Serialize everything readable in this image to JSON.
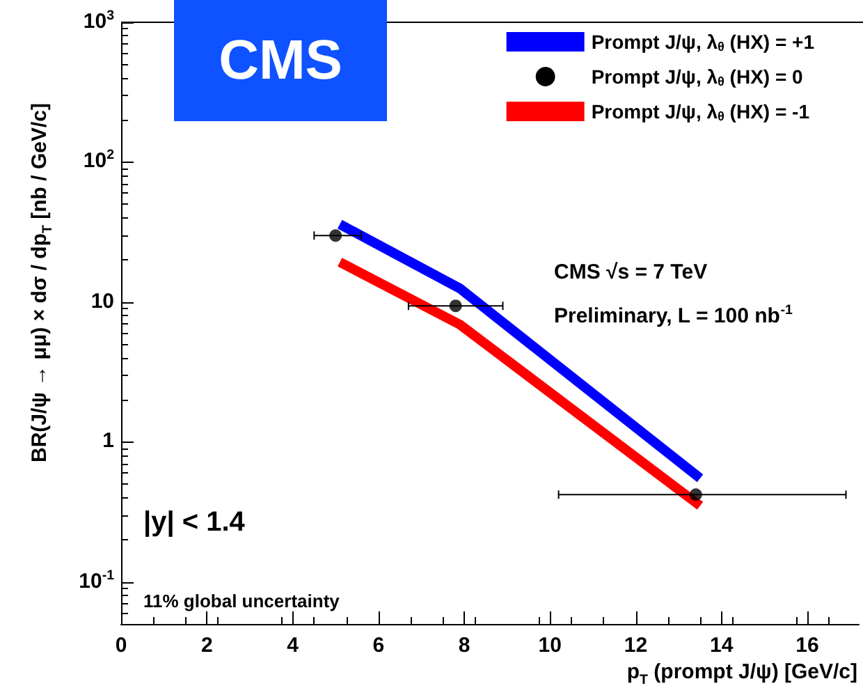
{
  "chart_data": {
    "type": "line",
    "xlabel": "p$_{T}$ (prompt J/ψ) [GeV/c]",
    "ylabel": "BR(J/ψ → μμ) × dσ / dp$_{T}$  [nb / GeV/c]",
    "log": "y",
    "grid": false,
    "legend": "top right",
    "xlim": [
      0,
      17.2
    ],
    "xticks": [
      0,
      2,
      4,
      6,
      8,
      10,
      12,
      14,
      16
    ],
    "ylim": [
      0.05,
      1000
    ],
    "yticks": [
      {
        "value": 0.1,
        "label": "10$^{-1}$"
      },
      1,
      10,
      {
        "value": 100,
        "label": "10$^{2}$"
      },
      {
        "value": 1000,
        "label": "10$^{3}$"
      }
    ],
    "series": [
      {
        "name": "Prompt J/ψ, λ$_{θ}$ (HX) = +1",
        "color": "#0000ff",
        "type": "line",
        "marker": "none",
        "x": [
          5.1,
          7.9,
          13.5
        ],
        "values": [
          36,
          12.5,
          0.55
        ]
      },
      {
        "name": "Prompt J/ψ, λ$_{θ}$ (HX) = 0",
        "color": "#000000",
        "type": "scatter",
        "marker": "circle",
        "x": [
          5.0,
          7.8,
          13.4
        ],
        "values": [
          29.9,
          9.4,
          0.42
        ],
        "xerrors": [
          [
            4.5,
            5.6
          ],
          [
            6.7,
            8.9
          ],
          [
            10.2,
            16.9
          ]
        ]
      },
      {
        "name": "Prompt J/ψ, λ$_{θ}$ (HX) = -1",
        "color": "#ff0000",
        "type": "line",
        "marker": "none",
        "x": [
          5.1,
          7.9,
          13.5
        ],
        "values": [
          19.3,
          6.9,
          0.35
        ]
      }
    ],
    "annotations": [
      "CMS",
      "CMS √s = 7 TeV",
      "Preliminary, L = 100 nb$^{-1}$",
      "|y| < 1.4",
      "11% global uncertainty"
    ]
  }
}
